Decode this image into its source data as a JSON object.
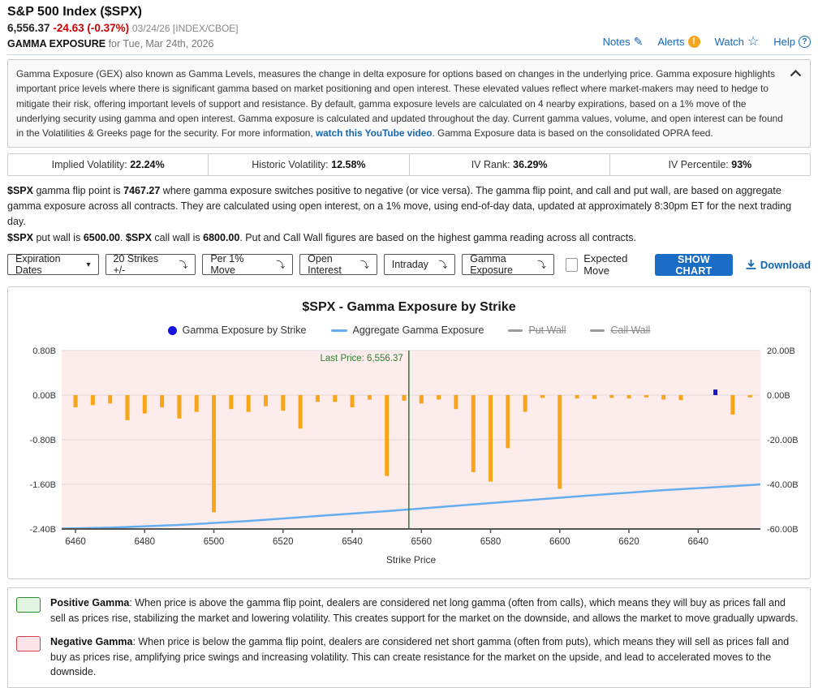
{
  "header": {
    "title": "S&P 500 Index ($SPX)",
    "price": "6,556.37",
    "change": "-24.63 (-0.37%)",
    "date_exchange": "03/24/26 [INDEX/CBOE]",
    "section_label": "GAMMA EXPOSURE",
    "section_date": "for Tue, Mar 24th, 2026",
    "links": {
      "notes": "Notes",
      "alerts": "Alerts",
      "watch": "Watch",
      "help": "Help"
    }
  },
  "description": {
    "text1": "Gamma Exposure (GEX) also known as Gamma Levels, measures the change in delta exposure for options based on changes in the underlying price. Gamma exposure highlights important price levels where there is significant gamma based on market positioning and open interest. These elevated values reflect where market-makers may need to hedge to mitigate their risk, offering important levels of support and resistance. By default, gamma exposure levels are calculated on 4 nearby expirations, based on a 1% move of the underlying security using gamma and open interest. Gamma exposure is calculated and updated throughout the day. Current gamma values, volume, and open interest can be found in the Volatilities & Greeks page for the security. For more information, ",
    "link": "watch this YouTube video",
    "text2": ". Gamma Exposure data is based on the consolidated OPRA feed."
  },
  "stats": {
    "items": [
      {
        "label": "Implied Volatility: ",
        "value": "22.24%"
      },
      {
        "label": "Historic Volatility: ",
        "value": "12.58%"
      },
      {
        "label": "IV Rank: ",
        "value": "36.29%"
      },
      {
        "label": "IV Percentile: ",
        "value": "93%"
      }
    ]
  },
  "gamma_text": {
    "p1_b1": "$SPX",
    "p1_t1": " gamma flip point is ",
    "p1_b2": "7467.27",
    "p1_t2": " where gamma exposure switches positive to negative (or vice versa). The gamma flip point, and call and put wall, are based on aggregate gamma exposure across all contracts. They are calculated using open interest, on a 1% move, using end-of-day data, updated at approximately 8:30pm ET for the next trading day.",
    "p2_b1": "$SPX",
    "p2_t1": " put wall is ",
    "p2_b2": "6500.00",
    "p2_t2": ". ",
    "p2_b3": "$SPX",
    "p2_t3": " call wall is ",
    "p2_b4": "6800.00",
    "p2_t4": ". Put and Call Wall figures are based on the highest gamma reading across all contracts."
  },
  "toolbar": {
    "expiration_button": "Expiration Dates",
    "selects": [
      {
        "name": "strikes",
        "value": "20 Strikes +/-"
      },
      {
        "name": "move",
        "value": "Per 1% Move"
      },
      {
        "name": "interest",
        "value": "Open Interest"
      },
      {
        "name": "session",
        "value": "Intraday"
      },
      {
        "name": "metric",
        "value": "Gamma Exposure"
      }
    ],
    "expected_move_label": "Expected Move",
    "expected_move_checked": false,
    "show_chart_label": "SHOW CHART",
    "download_label": "Download"
  },
  "chart_data": {
    "type": "bar",
    "title": "$SPX - Gamma Exposure by Strike",
    "xlabel": "Strike Price",
    "legend": [
      {
        "label": "Gamma Exposure by Strike",
        "marker": "dot",
        "color": "#1414dd",
        "active": true
      },
      {
        "label": "Aggregate Gamma Exposure",
        "marker": "line",
        "color": "#64aef0",
        "active": true
      },
      {
        "label": "Put Wall",
        "marker": "line",
        "color": "#9a9a9a",
        "active": false
      },
      {
        "label": "Call Wall",
        "marker": "line",
        "color": "#9a9a9a",
        "active": false
      }
    ],
    "left_axis": {
      "ticks": [
        "0.80B",
        "0.00B",
        "-0.80B",
        "-1.60B",
        "-2.40B"
      ],
      "tick_values": [
        0.8,
        0,
        -0.8,
        -1.6,
        -2.4
      ],
      "max": 0.8,
      "min": -2.4
    },
    "right_axis": {
      "ticks": [
        "20.00B",
        "0.00B",
        "-20.00B",
        "-40.00B",
        "-60.00B"
      ],
      "max": 20,
      "min": -60
    },
    "x_ticks": [
      6460,
      6480,
      6500,
      6520,
      6540,
      6560,
      6580,
      6600,
      6620,
      6640
    ],
    "x_range": [
      6456,
      6658
    ],
    "last_price": {
      "value": 6556.37,
      "label": "Last Price: 6,556.37",
      "color": "#2e7d32"
    },
    "bars": [
      [
        6460,
        -0.22
      ],
      [
        6465,
        -0.18
      ],
      [
        6470,
        -0.15
      ],
      [
        6475,
        -0.45
      ],
      [
        6480,
        -0.33
      ],
      [
        6485,
        -0.22
      ],
      [
        6490,
        -0.42
      ],
      [
        6495,
        -0.3
      ],
      [
        6500,
        -2.1
      ],
      [
        6505,
        -0.25
      ],
      [
        6510,
        -0.3
      ],
      [
        6515,
        -0.2
      ],
      [
        6520,
        -0.28
      ],
      [
        6525,
        -0.6
      ],
      [
        6530,
        -0.12
      ],
      [
        6535,
        -0.12
      ],
      [
        6540,
        -0.22
      ],
      [
        6545,
        -0.08
      ],
      [
        6550,
        -1.45
      ],
      [
        6555,
        -0.1
      ],
      [
        6560,
        -0.15
      ],
      [
        6565,
        -0.08
      ],
      [
        6570,
        -0.25
      ],
      [
        6575,
        -1.38
      ],
      [
        6580,
        -1.55
      ],
      [
        6585,
        -0.95
      ],
      [
        6590,
        -0.3
      ],
      [
        6595,
        -0.05
      ],
      [
        6600,
        -1.68
      ],
      [
        6605,
        -0.06
      ],
      [
        6610,
        -0.07
      ],
      [
        6615,
        -0.05
      ],
      [
        6620,
        -0.06
      ],
      [
        6625,
        -0.04
      ],
      [
        6630,
        -0.08
      ],
      [
        6635,
        -0.09
      ],
      [
        6645,
        0.1
      ],
      [
        6650,
        -0.35
      ],
      [
        6655,
        -0.04
      ]
    ],
    "aggregate": [
      [
        6456,
        -59.8
      ],
      [
        6470,
        -59.4
      ],
      [
        6490,
        -58.2
      ],
      [
        6510,
        -56.4
      ],
      [
        6530,
        -54.2
      ],
      [
        6550,
        -52.0
      ],
      [
        6570,
        -49.6
      ],
      [
        6590,
        -47.2
      ],
      [
        6610,
        -44.8
      ],
      [
        6630,
        -42.6
      ],
      [
        6650,
        -40.8
      ],
      [
        6658,
        -40.0
      ]
    ],
    "colors": {
      "plot_bg": "#fdecec",
      "grid": "#e4d7d7",
      "bar_negative": "#f9a51a",
      "bar_positive": "#1414cc",
      "aggregate_line": "#64aef0",
      "axis": "#555"
    }
  },
  "notes_footer": {
    "positive": {
      "title": "Positive Gamma",
      "text": ": When price is above the gamma flip point, dealers are considered net long gamma (often from calls), which means they will buy as prices fall and sell as prices rise, stabilizing the market and lowering volatility. This creates support for the market on the downside, and allows the market to move gradually upwards."
    },
    "negative": {
      "title": "Negative Gamma",
      "text": ": When price is below the gamma flip point, dealers are considered net short gamma (often from puts), which means they will sell as prices fall and buy as prices rise, amplifying price swings and increasing volatility. This can create resistance for the market on the upside, and lead to accelerated moves to the downside."
    }
  },
  "colors": {
    "accent_blue": "#1568b8",
    "button_blue": "#1a6cc4",
    "negative_red": "#cc0000",
    "alert_orange": "#f5a623"
  }
}
